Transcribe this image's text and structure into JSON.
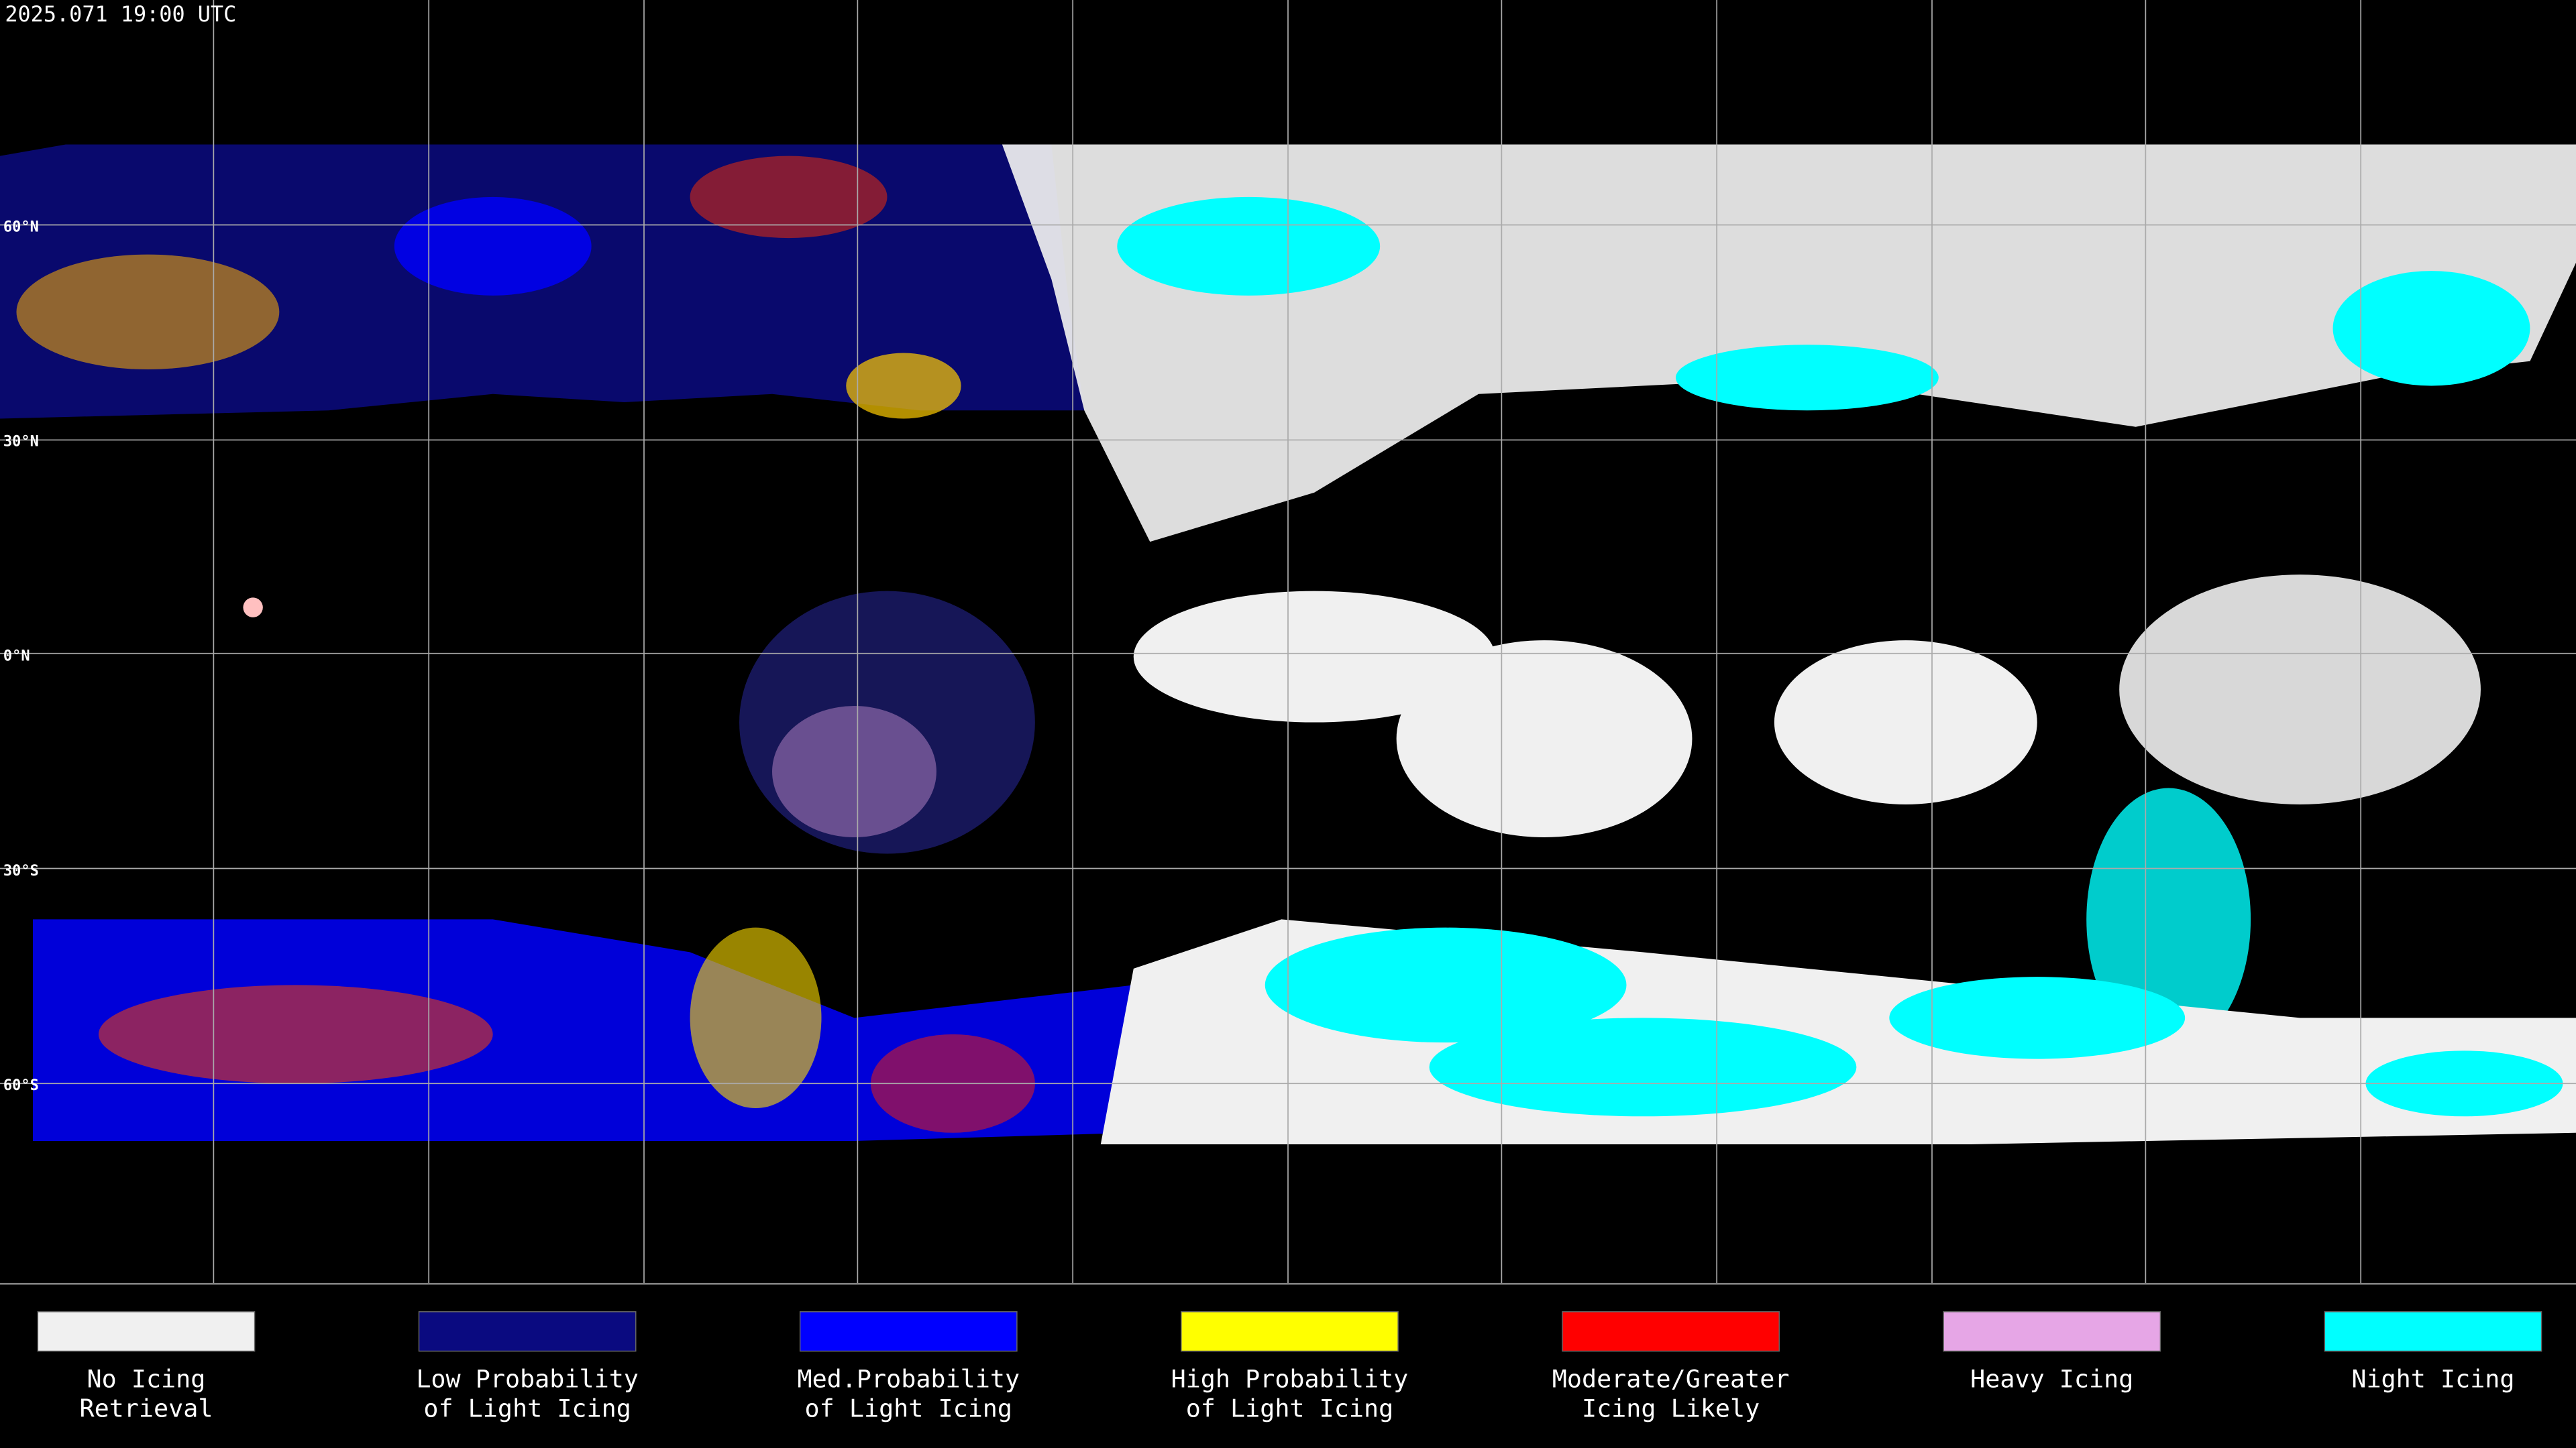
{
  "header": {
    "title": "2025.071 19:00 UTC"
  },
  "lat_labels": [
    "60°N",
    "30°N",
    "0°N",
    "30°S",
    "60°S"
  ],
  "legend": [
    {
      "color": "#f0f0f0",
      "lines": [
        "No Icing",
        "Retrieval"
      ]
    },
    {
      "color": "#0a0a80",
      "lines": [
        "Low Probability",
        "of Light Icing"
      ]
    },
    {
      "color": "#0000ff",
      "lines": [
        "Med.Probability",
        "of Light Icing"
      ]
    },
    {
      "color": "#ffff00",
      "lines": [
        "High Probability",
        "of Light Icing"
      ]
    },
    {
      "color": "#ff0000",
      "lines": [
        "Moderate/Greater",
        "Icing Likely"
      ]
    },
    {
      "color": "#e6a6e6",
      "lines": [
        "Heavy Icing"
      ]
    },
    {
      "color": "#00ffff",
      "lines": [
        "Night Icing"
      ]
    }
  ]
}
